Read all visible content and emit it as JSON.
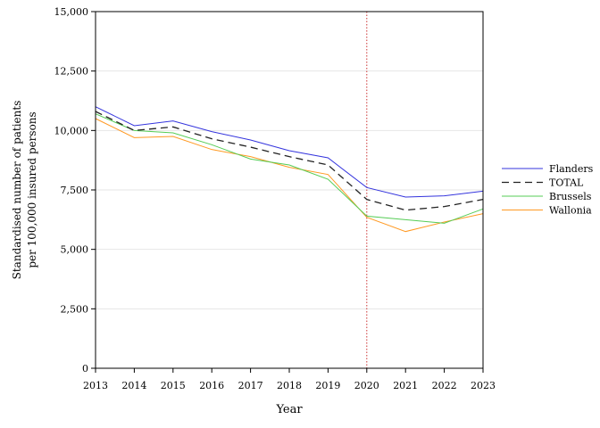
{
  "chart_data": {
    "type": "line",
    "title": "",
    "xlabel": "Year",
    "ylabel_lines": [
      "Standardised number of patients",
      "per 100,000 insured persons"
    ],
    "x": [
      2013,
      2014,
      2015,
      2016,
      2017,
      2018,
      2019,
      2020,
      2021,
      2022,
      2023
    ],
    "xlim": [
      2013,
      2023
    ],
    "ylim": [
      0,
      15000
    ],
    "yticks": [
      0,
      2500,
      5000,
      7500,
      10000,
      12500,
      15000
    ],
    "ytick_labels": [
      "0",
      "2,500",
      "5,000",
      "7,500",
      "10,000",
      "12,500",
      "15,000"
    ],
    "xtick_labels": [
      "2013",
      "2014",
      "2015",
      "2016",
      "2017",
      "2018",
      "2019",
      "2020",
      "2021",
      "2022",
      "2023"
    ],
    "grid": "horizontal",
    "legend_position": "right",
    "reference_line": {
      "x": 2020,
      "color": "#cc3333",
      "style": "dotted"
    },
    "series": [
      {
        "name": "Flanders",
        "color": "#3333dd",
        "dash": "solid",
        "values": [
          11000,
          10200,
          10400,
          9950,
          9600,
          9150,
          8850,
          7600,
          7200,
          7250,
          7450
        ]
      },
      {
        "name": "TOTAL",
        "color": "#222222",
        "dash": "dashed",
        "values": [
          10800,
          10000,
          10150,
          9650,
          9300,
          8900,
          8550,
          7100,
          6650,
          6800,
          7100
        ]
      },
      {
        "name": "Brussels",
        "color": "#55cc55",
        "dash": "solid",
        "values": [
          10700,
          10000,
          9900,
          9400,
          8800,
          8550,
          7950,
          6400,
          6250,
          6100,
          6700
        ]
      },
      {
        "name": "Wallonia",
        "color": "#ff9922",
        "dash": "solid",
        "values": [
          10500,
          9700,
          9750,
          9200,
          8900,
          8450,
          8150,
          6350,
          5750,
          6150,
          6500
        ]
      }
    ]
  }
}
